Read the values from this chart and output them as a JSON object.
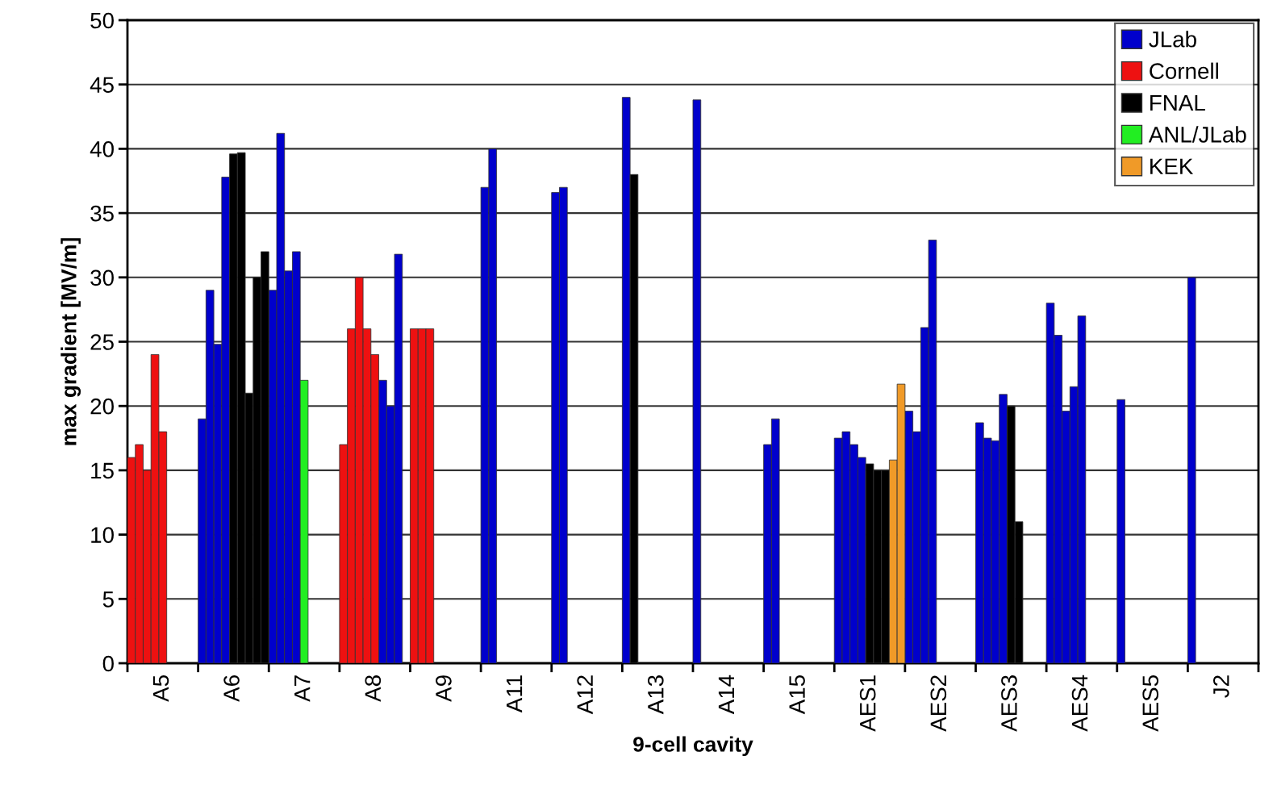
{
  "chart_data": {
    "type": "bar",
    "xlabel": "9-cell cavity",
    "ylabel": "max gradient [MV/m]",
    "categories": [
      "A5",
      "A6",
      "A7",
      "A8",
      "A9",
      "A11",
      "A12",
      "A13",
      "A14",
      "A15",
      "AES1",
      "AES2",
      "AES3",
      "AES4",
      "AES5",
      "J2"
    ],
    "series": [
      {
        "values": [
          16,
          19,
          29,
          17,
          26,
          37,
          36.6,
          44,
          43.8,
          17,
          17.5,
          19.6,
          18.7,
          28,
          20.5,
          30
        ],
        "colors": [
          "#ee1111",
          "#0000cc",
          "#0000cc",
          "#ee1111",
          "#ee1111",
          "#0000cc",
          "#0000cc",
          "#0000cc",
          "#0000cc",
          "#0000cc",
          "#0000cc",
          "#0000cc",
          "#0000cc",
          "#0000cc",
          "#0000cc",
          "#0000cc"
        ]
      },
      {
        "values": [
          17,
          29,
          41.2,
          26,
          26,
          40,
          37,
          38,
          null,
          19,
          18,
          18,
          17.5,
          25.5,
          null,
          null
        ],
        "colors": [
          "#ee1111",
          "#0000cc",
          "#0000cc",
          "#ee1111",
          "#ee1111",
          "#0000cc",
          "#0000cc",
          "#000000",
          null,
          "#0000cc",
          "#0000cc",
          "#0000cc",
          "#0000cc",
          "#0000cc",
          null,
          null
        ]
      },
      {
        "values": [
          15,
          24.8,
          30.5,
          30,
          26,
          null,
          null,
          null,
          null,
          null,
          17,
          26.1,
          17.3,
          19.6,
          null,
          null
        ],
        "colors": [
          "#ee1111",
          "#0000cc",
          "#0000cc",
          "#ee1111",
          "#ee1111",
          null,
          null,
          null,
          null,
          null,
          "#0000cc",
          "#0000cc",
          "#0000cc",
          "#0000cc",
          null,
          null
        ]
      },
      {
        "values": [
          24,
          37.8,
          32,
          26,
          null,
          null,
          null,
          null,
          null,
          null,
          16,
          32.9,
          20.9,
          21.5,
          null,
          null
        ],
        "colors": [
          "#ee1111",
          "#0000cc",
          "#0000cc",
          "#ee1111",
          null,
          null,
          null,
          null,
          null,
          null,
          "#0000cc",
          "#0000cc",
          "#0000cc",
          "#0000cc",
          null,
          null
        ]
      },
      {
        "values": [
          18,
          39.6,
          22,
          24,
          null,
          null,
          null,
          null,
          null,
          null,
          15.5,
          null,
          20,
          27,
          null,
          null
        ],
        "colors": [
          "#ee1111",
          "#000000",
          "#22ee22",
          "#ee1111",
          null,
          null,
          null,
          null,
          null,
          null,
          "#000000",
          null,
          "#000000",
          "#0000cc",
          null,
          null
        ]
      },
      {
        "values": [
          null,
          39.7,
          null,
          22,
          null,
          null,
          null,
          null,
          null,
          null,
          15,
          null,
          11,
          null,
          null,
          null
        ],
        "colors": [
          null,
          "#000000",
          null,
          "#0000cc",
          null,
          null,
          null,
          null,
          null,
          null,
          "#000000",
          null,
          "#000000",
          null,
          null,
          null
        ]
      },
      {
        "values": [
          null,
          21,
          null,
          20,
          null,
          null,
          null,
          null,
          null,
          null,
          15,
          null,
          null,
          null,
          null,
          null
        ],
        "colors": [
          null,
          "#000000",
          null,
          "#0000cc",
          null,
          null,
          null,
          null,
          null,
          null,
          "#000000",
          null,
          null,
          null,
          null,
          null
        ]
      },
      {
        "values": [
          null,
          30,
          null,
          31.8,
          null,
          null,
          null,
          null,
          null,
          null,
          15.8,
          null,
          null,
          null,
          null,
          null
        ],
        "colors": [
          null,
          "#000000",
          null,
          "#0000cc",
          null,
          null,
          null,
          null,
          null,
          null,
          "#f09a28",
          null,
          null,
          null,
          null,
          null
        ]
      },
      {
        "values": [
          null,
          32,
          null,
          null,
          null,
          null,
          null,
          null,
          null,
          null,
          21.7,
          null,
          null,
          null,
          null,
          null
        ],
        "colors": [
          null,
          "#000000",
          null,
          null,
          null,
          null,
          null,
          null,
          null,
          null,
          "#f09a28",
          null,
          null,
          null,
          null,
          null
        ]
      },
      {
        "name": "JLab",
        "color": "#0000cc",
        "values": [
          null,
          null,
          null,
          null,
          null,
          null,
          null,
          null,
          null,
          null,
          null,
          null,
          null,
          null,
          null,
          null
        ]
      },
      {
        "name": "Cornell",
        "color": "#ee1111",
        "values": [
          null,
          null,
          null,
          null,
          null,
          null,
          null,
          null,
          null,
          null,
          null,
          null,
          null,
          null,
          null,
          null
        ]
      },
      {
        "name": "FNAL",
        "color": "#000000",
        "values": [
          null,
          null,
          null,
          null,
          null,
          null,
          null,
          null,
          null,
          null,
          null,
          null,
          null,
          null,
          null,
          null
        ]
      },
      {
        "name": "ANL/JLab",
        "color": "#22ee22",
        "values": [
          null,
          null,
          null,
          null,
          null,
          null,
          null,
          null,
          null,
          null,
          null,
          null,
          null,
          null,
          null,
          null
        ]
      },
      {
        "name": "KEK",
        "color": "#f09a28",
        "values": [
          null,
          null,
          null,
          null,
          null,
          null,
          null,
          null,
          null,
          null,
          null,
          null,
          null,
          null,
          null,
          null
        ]
      }
    ],
    "ylim": [
      0,
      50
    ],
    "yticks": [
      0,
      5,
      10,
      15,
      20,
      25,
      30,
      35,
      40,
      45,
      50
    ],
    "grid": "y",
    "legend": "top right"
  }
}
